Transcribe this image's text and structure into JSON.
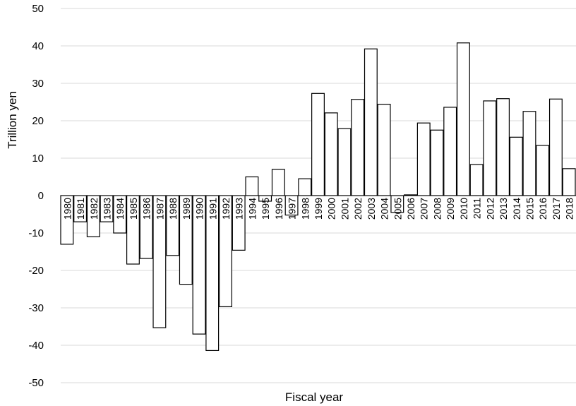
{
  "chart_data": {
    "type": "bar",
    "title": "",
    "xlabel": "Fiscal year",
    "ylabel": "Trillion yen",
    "ylim": [
      -50,
      50
    ],
    "yticks": [
      50,
      40,
      30,
      20,
      10,
      0,
      -10,
      -20,
      -30,
      -40,
      -50
    ],
    "ytick_labels": [
      "50",
      "40",
      "30",
      "20",
      "10",
      "0",
      "-10",
      "-20",
      "-30",
      "-40",
      "-50"
    ],
    "grid": true,
    "legend": "none",
    "categories": [
      "1980",
      "1981",
      "1982",
      "1983",
      "1984",
      "1985",
      "1986",
      "1987",
      "1988",
      "1989",
      "1990",
      "1991",
      "1992",
      "1993",
      "1994",
      "1995",
      "1996",
      "1997",
      "1998",
      "1999",
      "2000",
      "2001",
      "2002",
      "2003",
      "2004",
      "2005",
      "2006",
      "2007",
      "2008",
      "2009",
      "2010",
      "2011",
      "2012",
      "2013",
      "2014",
      "2015",
      "2016",
      "2017",
      "2018"
    ],
    "values": [
      -13,
      -7,
      -11,
      -7,
      -10,
      -18.3,
      -16.8,
      -35.3,
      -16,
      -23.7,
      -37,
      -41.4,
      -29.7,
      -14.6,
      5,
      -1.5,
      7,
      -5.2,
      4.5,
      27.3,
      22.1,
      17.9,
      25.7,
      39.2,
      24.4,
      -4.5,
      0.2,
      19.4,
      17.5,
      23.6,
      40.8,
      8.3,
      25.3,
      25.9,
      15.6,
      22.5,
      13.4,
      25.8,
      7.2
    ],
    "colors": {
      "bar_fill": "#ffffff",
      "bar_stroke": "#000000",
      "grid": "#d9d9d9"
    }
  }
}
